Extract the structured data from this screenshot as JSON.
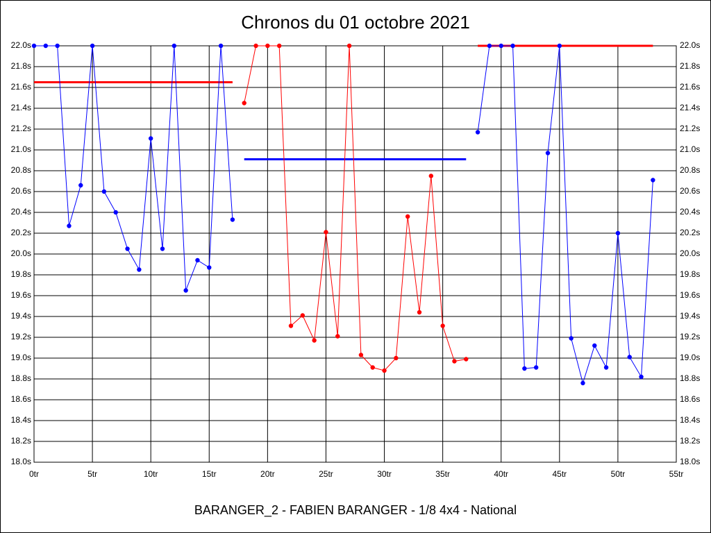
{
  "chart_data": {
    "type": "line",
    "title": "Chronos du 01 octobre 2021",
    "footer": "BARANGER_2 - FABIEN BARANGER - 1/8 4x4 - National",
    "xlim": [
      0,
      55
    ],
    "xticks": [
      {
        "value": 0,
        "label": "0tr"
      },
      {
        "value": 5,
        "label": "5tr"
      },
      {
        "value": 10,
        "label": "10tr"
      },
      {
        "value": 15,
        "label": "15tr"
      },
      {
        "value": 20,
        "label": "20tr"
      },
      {
        "value": 25,
        "label": "25tr"
      },
      {
        "value": 30,
        "label": "30tr"
      },
      {
        "value": 35,
        "label": "35tr"
      },
      {
        "value": 40,
        "label": "40tr"
      },
      {
        "value": 45,
        "label": "45tr"
      },
      {
        "value": 50,
        "label": "50tr"
      },
      {
        "value": 55,
        "label": "55tr"
      }
    ],
    "ylim": [
      18,
      22
    ],
    "yticks": [
      {
        "value": 18,
        "label": "18.0s"
      },
      {
        "value": 18.2,
        "label": "18.2s"
      },
      {
        "value": 18.4,
        "label": "18.4s"
      },
      {
        "value": 18.6,
        "label": "18.6s"
      },
      {
        "value": 18.8,
        "label": "18.8s"
      },
      {
        "value": 19,
        "label": "19.0s"
      },
      {
        "value": 19.2,
        "label": "19.2s"
      },
      {
        "value": 19.4,
        "label": "19.4s"
      },
      {
        "value": 19.6,
        "label": "19.6s"
      },
      {
        "value": 19.8,
        "label": "19.8s"
      },
      {
        "value": 20,
        "label": "20.0s"
      },
      {
        "value": 20.2,
        "label": "20.2s"
      },
      {
        "value": 20.4,
        "label": "20.4s"
      },
      {
        "value": 20.6,
        "label": "20.6s"
      },
      {
        "value": 20.8,
        "label": "20.8s"
      },
      {
        "value": 21,
        "label": "21.0s"
      },
      {
        "value": 21.2,
        "label": "21.2s"
      },
      {
        "value": 21.4,
        "label": "21.4s"
      },
      {
        "value": 21.6,
        "label": "21.6s"
      },
      {
        "value": 21.8,
        "label": "21.8s"
      },
      {
        "value": 22,
        "label": "22.0s"
      }
    ],
    "grid": true,
    "series": [
      {
        "color": "#0000ff",
        "x": [
          0,
          1,
          2,
          3,
          4,
          5,
          6,
          7,
          8,
          9,
          10,
          11,
          12,
          13,
          14,
          15,
          16,
          17
        ],
        "values": [
          22.0,
          22.0,
          22.0,
          20.27,
          20.66,
          22.0,
          20.6,
          20.4,
          20.05,
          19.85,
          21.11,
          20.05,
          22.0,
          19.65,
          19.94,
          19.87,
          22.0,
          20.33
        ]
      },
      {
        "color": "#ff0000",
        "x": [
          18,
          19,
          20,
          21,
          22,
          23,
          24,
          25,
          26,
          27,
          28,
          29,
          30,
          31,
          32,
          33,
          34,
          35,
          36,
          37
        ],
        "values": [
          21.45,
          22.0,
          22.0,
          22.0,
          19.31,
          19.41,
          19.17,
          20.21,
          19.21,
          22.0,
          19.03,
          18.91,
          18.88,
          19.0,
          20.36,
          19.44,
          20.75,
          19.31,
          18.97,
          18.99
        ]
      },
      {
        "color": "#0000ff",
        "x": [
          38,
          39,
          40,
          41,
          42,
          43,
          44,
          45,
          46,
          47,
          48,
          49,
          50,
          51,
          52,
          53
        ],
        "values": [
          21.17,
          22.0,
          22.0,
          22.0,
          18.9,
          18.91,
          20.97,
          22.0,
          19.19,
          18.76,
          19.12,
          18.91,
          20.2,
          19.01,
          18.82,
          20.71
        ]
      }
    ],
    "reference_lines": [
      {
        "color": "#ff0000",
        "xrange": [
          0,
          17
        ],
        "value": 21.65
      },
      {
        "color": "#0000ff",
        "xrange": [
          18,
          37
        ],
        "value": 20.91
      },
      {
        "color": "#ff0000",
        "xrange": [
          38,
          53
        ],
        "value": 22.0
      }
    ]
  }
}
